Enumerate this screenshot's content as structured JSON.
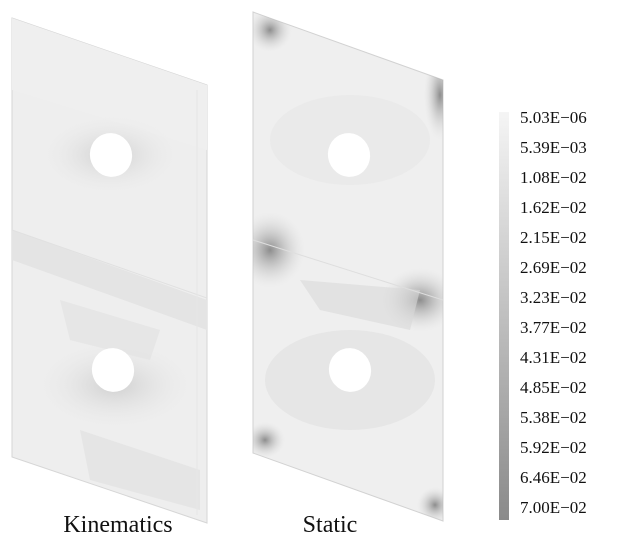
{
  "panels": [
    {
      "label": "Kinematics"
    },
    {
      "label": "Static"
    }
  ],
  "colorbar": {
    "ticks": [
      "5.03E−06",
      "5.39E−03",
      "1.08E−02",
      "1.62E−02",
      "2.15E−02",
      "2.69E−02",
      "3.23E−02",
      "3.77E−02",
      "4.31E−02",
      "4.85E−02",
      "5.38E−02",
      "5.92E−02",
      "6.46E−02",
      "7.00E−02"
    ],
    "color_low": "#f4f4f4",
    "color_high": "#8a8a8a"
  }
}
